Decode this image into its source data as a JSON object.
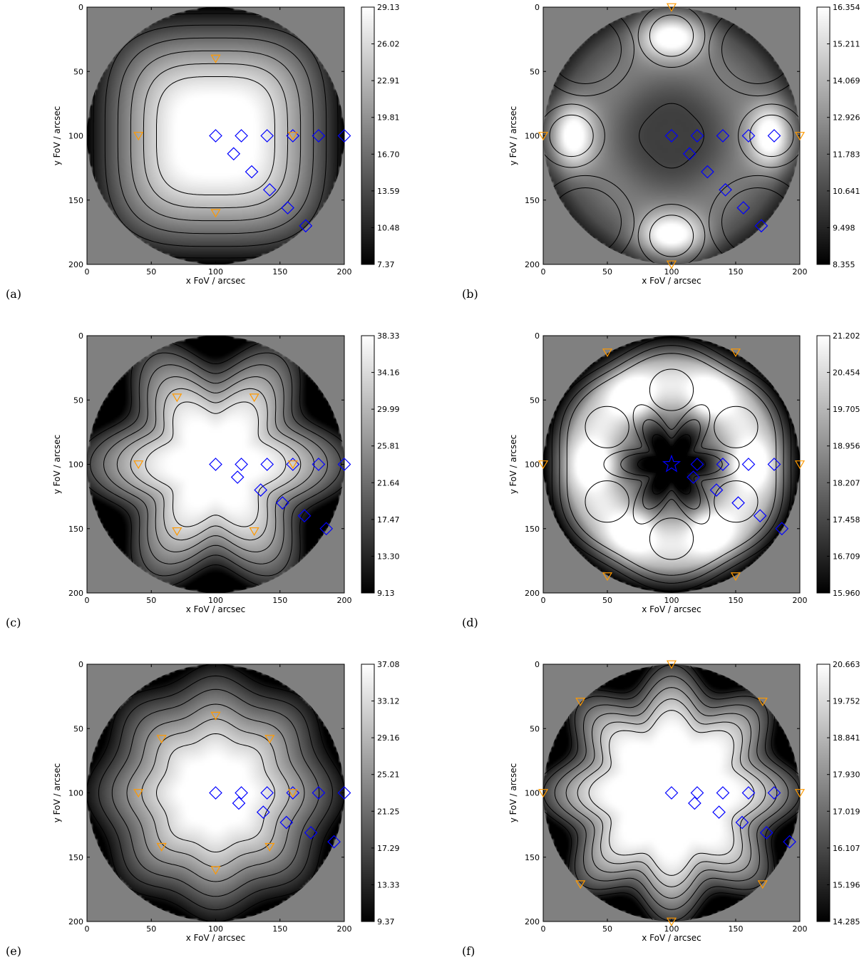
{
  "figure": {
    "background_color": "#808080",
    "contour_color": "#000000",
    "guide_star_color": "#0000ff",
    "laser_star_color": "#ff9900",
    "colormap": "gray"
  },
  "chart_data": [
    {
      "panel": "(a)",
      "type": "heatmap",
      "xlabel": "x FoV / arcsec",
      "ylabel": "y FoV / arcsec",
      "xlim": [
        0,
        200
      ],
      "ylim": [
        200,
        0
      ],
      "xticks": [
        "0",
        "50",
        "100",
        "150",
        "200"
      ],
      "yticks": [
        "0",
        "50",
        "100",
        "150",
        "200"
      ],
      "colorbar_ticks": [
        "29.13",
        "26.02",
        "22.91",
        "19.81",
        "16.70",
        "13.59",
        "10.48",
        "7.37"
      ],
      "colorbar_range": [
        7.37,
        29.13
      ],
      "shape": "square",
      "symmetry": 0,
      "diamonds": [
        [
          100,
          100
        ],
        [
          120,
          100
        ],
        [
          140,
          100
        ],
        [
          160,
          100
        ],
        [
          180,
          100
        ],
        [
          200,
          100
        ],
        [
          114,
          114
        ],
        [
          128,
          128
        ],
        [
          142,
          142
        ],
        [
          156,
          156
        ],
        [
          170,
          170
        ]
      ],
      "triangles": [
        [
          100,
          40
        ],
        [
          40,
          100
        ],
        [
          160,
          100
        ],
        [
          100,
          160
        ]
      ],
      "stars": []
    },
    {
      "panel": "(b)",
      "type": "heatmap",
      "xlabel": "x FoV / arcsec",
      "ylabel": "y FoV / arcsec",
      "xlim": [
        0,
        200
      ],
      "ylim": [
        200,
        0
      ],
      "xticks": [
        "0",
        "50",
        "100",
        "150",
        "200"
      ],
      "yticks": [
        "0",
        "50",
        "100",
        "150",
        "200"
      ],
      "colorbar_ticks": [
        "16.354",
        "15.211",
        "14.069",
        "12.926",
        "11.783",
        "10.641",
        "9.498",
        "8.355"
      ],
      "colorbar_range": [
        8.355,
        16.354
      ],
      "shape": "lobes",
      "symmetry": 4,
      "diamonds": [
        [
          100,
          100
        ],
        [
          120,
          100
        ],
        [
          140,
          100
        ],
        [
          160,
          100
        ],
        [
          180,
          100
        ],
        [
          114,
          114
        ],
        [
          128,
          128
        ],
        [
          142,
          142
        ],
        [
          156,
          156
        ],
        [
          170,
          170
        ]
      ],
      "triangles": [
        [
          100,
          0
        ],
        [
          0,
          100
        ],
        [
          200,
          100
        ],
        [
          100,
          200
        ]
      ],
      "stars": []
    },
    {
      "panel": "(c)",
      "type": "heatmap",
      "xlabel": "x FoV / arcsec",
      "ylabel": "y FoV / arcsec",
      "xlim": [
        0,
        200
      ],
      "ylim": [
        200,
        0
      ],
      "xticks": [
        "0",
        "50",
        "100",
        "150",
        "200"
      ],
      "yticks": [
        "0",
        "50",
        "100",
        "150",
        "200"
      ],
      "colorbar_ticks": [
        "38.33",
        "34.16",
        "29.99",
        "25.81",
        "21.64",
        "17.47",
        "13.30",
        "9.13"
      ],
      "colorbar_range": [
        9.13,
        38.33
      ],
      "shape": "flower",
      "symmetry": 6,
      "diamonds": [
        [
          100,
          100
        ],
        [
          120,
          100
        ],
        [
          140,
          100
        ],
        [
          160,
          100
        ],
        [
          180,
          100
        ],
        [
          200,
          100
        ],
        [
          117,
          110
        ],
        [
          135,
          120
        ],
        [
          152,
          130
        ],
        [
          169,
          140
        ],
        [
          186,
          150
        ]
      ],
      "triangles": [
        [
          40,
          100
        ],
        [
          70,
          48
        ],
        [
          130,
          48
        ],
        [
          160,
          100
        ],
        [
          130,
          152
        ],
        [
          70,
          152
        ]
      ],
      "stars": []
    },
    {
      "panel": "(d)",
      "type": "heatmap",
      "xlabel": "x FoV / arcsec",
      "ylabel": "y FoV / arcsec",
      "xlim": [
        0,
        200
      ],
      "ylim": [
        200,
        0
      ],
      "xticks": [
        "0",
        "50",
        "100",
        "150",
        "200"
      ],
      "yticks": [
        "0",
        "50",
        "100",
        "150",
        "200"
      ],
      "colorbar_ticks": [
        "21.202",
        "20.454",
        "19.705",
        "18.956",
        "18.207",
        "17.458",
        "16.709",
        "15.960"
      ],
      "colorbar_range": [
        15.96,
        21.202
      ],
      "shape": "lobes",
      "symmetry": 6,
      "diamonds": [
        [
          120,
          100
        ],
        [
          140,
          100
        ],
        [
          160,
          100
        ],
        [
          180,
          100
        ],
        [
          117,
          110
        ],
        [
          135,
          120
        ],
        [
          152,
          130
        ],
        [
          169,
          140
        ],
        [
          186,
          150
        ]
      ],
      "triangles": [
        [
          0,
          100
        ],
        [
          50,
          13
        ],
        [
          150,
          13
        ],
        [
          200,
          100
        ],
        [
          150,
          187
        ],
        [
          50,
          187
        ]
      ],
      "stars": [
        [
          100,
          100
        ]
      ]
    },
    {
      "panel": "(e)",
      "type": "heatmap",
      "xlabel": "x FoV / arcsec",
      "ylabel": "y FoV / arcsec",
      "xlim": [
        0,
        200
      ],
      "ylim": [
        200,
        0
      ],
      "xticks": [
        "0",
        "50",
        "100",
        "150",
        "200"
      ],
      "yticks": [
        "0",
        "50",
        "100",
        "150",
        "200"
      ],
      "colorbar_ticks": [
        "37.08",
        "33.12",
        "29.16",
        "25.21",
        "21.25",
        "17.29",
        "13.33",
        "9.37"
      ],
      "colorbar_range": [
        9.37,
        37.08
      ],
      "shape": "octagon",
      "symmetry": 8,
      "diamonds": [
        [
          100,
          100
        ],
        [
          120,
          100
        ],
        [
          140,
          100
        ],
        [
          160,
          100
        ],
        [
          180,
          100
        ],
        [
          200,
          100
        ],
        [
          118,
          108
        ],
        [
          137,
          115
        ],
        [
          155,
          123
        ],
        [
          174,
          131
        ],
        [
          192,
          138
        ]
      ],
      "triangles": [
        [
          40,
          100
        ],
        [
          58,
          58
        ],
        [
          100,
          40
        ],
        [
          142,
          58
        ],
        [
          160,
          100
        ],
        [
          142,
          142
        ],
        [
          100,
          160
        ],
        [
          58,
          142
        ]
      ],
      "stars": []
    },
    {
      "panel": "(f)",
      "type": "heatmap",
      "xlabel": "x FoV / arcsec",
      "ylabel": "y FoV / arcsec",
      "xlim": [
        0,
        200
      ],
      "ylim": [
        200,
        0
      ],
      "xticks": [
        "0",
        "50",
        "100",
        "150",
        "200"
      ],
      "yticks": [
        "0",
        "50",
        "100",
        "150",
        "200"
      ],
      "colorbar_ticks": [
        "20.663",
        "19.752",
        "18.841",
        "17.930",
        "17.019",
        "16.107",
        "15.196",
        "14.285"
      ],
      "colorbar_range": [
        14.285,
        20.663
      ],
      "shape": "flower",
      "symmetry": 8,
      "diamonds": [
        [
          100,
          100
        ],
        [
          120,
          100
        ],
        [
          140,
          100
        ],
        [
          160,
          100
        ],
        [
          180,
          100
        ],
        [
          118,
          108
        ],
        [
          137,
          115
        ],
        [
          155,
          123
        ],
        [
          174,
          131
        ],
        [
          192,
          138
        ]
      ],
      "triangles": [
        [
          0,
          100
        ],
        [
          29,
          29
        ],
        [
          100,
          0
        ],
        [
          171,
          29
        ],
        [
          200,
          100
        ],
        [
          171,
          171
        ],
        [
          100,
          200
        ],
        [
          29,
          171
        ]
      ],
      "stars": []
    }
  ]
}
